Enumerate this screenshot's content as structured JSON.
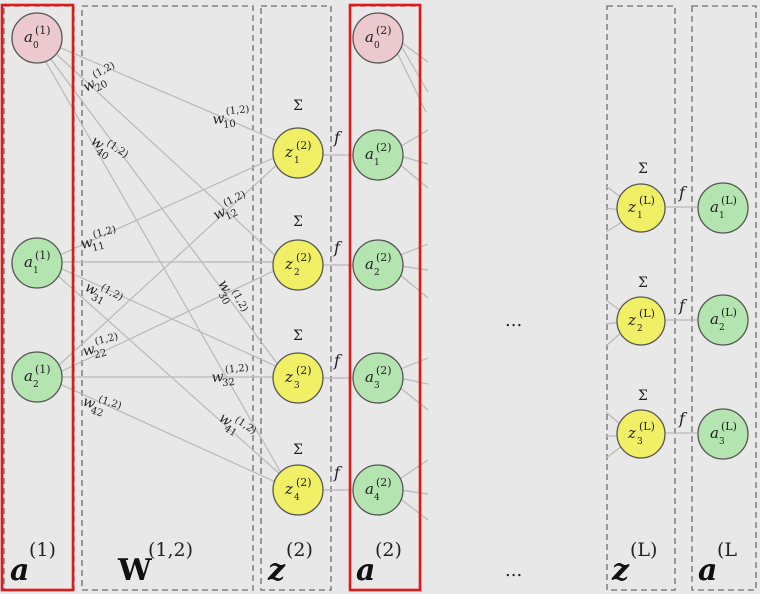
{
  "colors": {
    "bias": "#ecc9ce",
    "activation": "#b4e5b1",
    "sum": "#f0ef66",
    "highlight": "#e01a1a"
  },
  "columns": {
    "a1": {
      "base": "a",
      "sup": "(1)"
    },
    "W12": {
      "base": "W",
      "sup": "(1,2)"
    },
    "z2": {
      "base": "z",
      "sup": "(2)"
    },
    "a2": {
      "base": "a",
      "sup": "(2)"
    },
    "ellipsis": "...",
    "zL": {
      "base": "z",
      "sup": "(L)"
    },
    "aL": {
      "base": "a",
      "sup": "(L"
    }
  },
  "nodes": {
    "a1": [
      {
        "base": "a",
        "sub": "0",
        "sup": "(1)",
        "kind": "bias"
      },
      {
        "base": "a",
        "sub": "1",
        "sup": "(1)",
        "kind": "activation"
      },
      {
        "base": "a",
        "sub": "2",
        "sup": "(1)",
        "kind": "activation"
      }
    ],
    "z2": [
      {
        "base": "z",
        "sub": "1",
        "sup": "(2)",
        "kind": "sum"
      },
      {
        "base": "z",
        "sub": "2",
        "sup": "(2)",
        "kind": "sum"
      },
      {
        "base": "z",
        "sub": "3",
        "sup": "(2)",
        "kind": "sum"
      },
      {
        "base": "z",
        "sub": "4",
        "sup": "(2)",
        "kind": "sum"
      }
    ],
    "a2": [
      {
        "base": "a",
        "sub": "0",
        "sup": "(2)",
        "kind": "bias"
      },
      {
        "base": "a",
        "sub": "1",
        "sup": "(2)",
        "kind": "activation"
      },
      {
        "base": "a",
        "sub": "2",
        "sup": "(2)",
        "kind": "activation"
      },
      {
        "base": "a",
        "sub": "3",
        "sup": "(2)",
        "kind": "activation"
      },
      {
        "base": "a",
        "sub": "4",
        "sup": "(2)",
        "kind": "activation"
      }
    ],
    "zL": [
      {
        "base": "z",
        "sub": "1",
        "sup": "(L)",
        "kind": "sum"
      },
      {
        "base": "z",
        "sub": "2",
        "sup": "(L)",
        "kind": "sum"
      },
      {
        "base": "z",
        "sub": "3",
        "sup": "(L)",
        "kind": "sum"
      }
    ],
    "aL": [
      {
        "base": "a",
        "sub": "1",
        "sup": "(L)",
        "kind": "activation"
      },
      {
        "base": "a",
        "sub": "2",
        "sup": "(L)",
        "kind": "activation"
      },
      {
        "base": "a",
        "sub": "3",
        "sup": "(L)",
        "kind": "activation"
      }
    ]
  },
  "symbols": {
    "sigma": "Σ",
    "activation_fn": "f",
    "middle_ellipsis": "..."
  },
  "weights": [
    {
      "base": "w",
      "sub": "20",
      "sup": "(1,2)"
    },
    {
      "base": "w",
      "sub": "40",
      "sup": "(1,2)"
    },
    {
      "base": "w",
      "sub": "10",
      "sup": "(1,2)"
    },
    {
      "base": "w",
      "sub": "11",
      "sup": "(1,2)"
    },
    {
      "base": "w",
      "sub": "12",
      "sup": "(1,2)"
    },
    {
      "base": "w",
      "sub": "31",
      "sup": "(1,2)"
    },
    {
      "base": "w",
      "sub": "30",
      "sup": "(1,2)"
    },
    {
      "base": "w",
      "sub": "22",
      "sup": "(1,2)"
    },
    {
      "base": "w",
      "sub": "32",
      "sup": "(1,2)"
    },
    {
      "base": "w",
      "sub": "42",
      "sup": "(1,2)"
    },
    {
      "base": "w",
      "sub": "41",
      "sup": "(1,2)"
    }
  ]
}
